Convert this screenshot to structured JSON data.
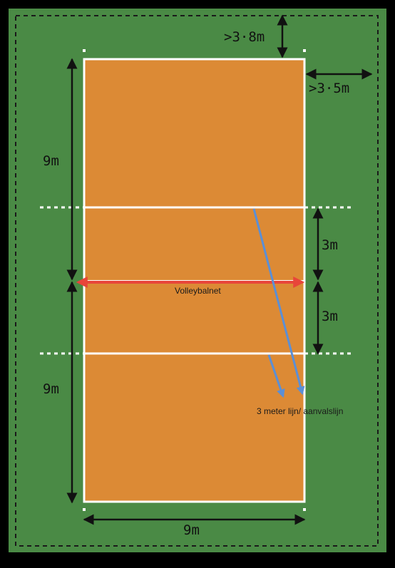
{
  "colors": {
    "grass": "#4a8a45",
    "court": "#dc8a35",
    "line": "#ffffff",
    "dimension": "#111111",
    "net": "#e8453a",
    "pointer": "#5b8fd6"
  },
  "dimensions": {
    "free_zone_end": ">3·8m",
    "free_zone_side": ">3·5m",
    "half_length_top": "9m",
    "half_length_bottom": "9m",
    "attack_zone_top": "3m",
    "attack_zone_bottom": "3m",
    "court_width": "9m"
  },
  "labels": {
    "net": "Volleybalnet",
    "attack_line": "3 meter lijn/ aanvalslijn"
  }
}
